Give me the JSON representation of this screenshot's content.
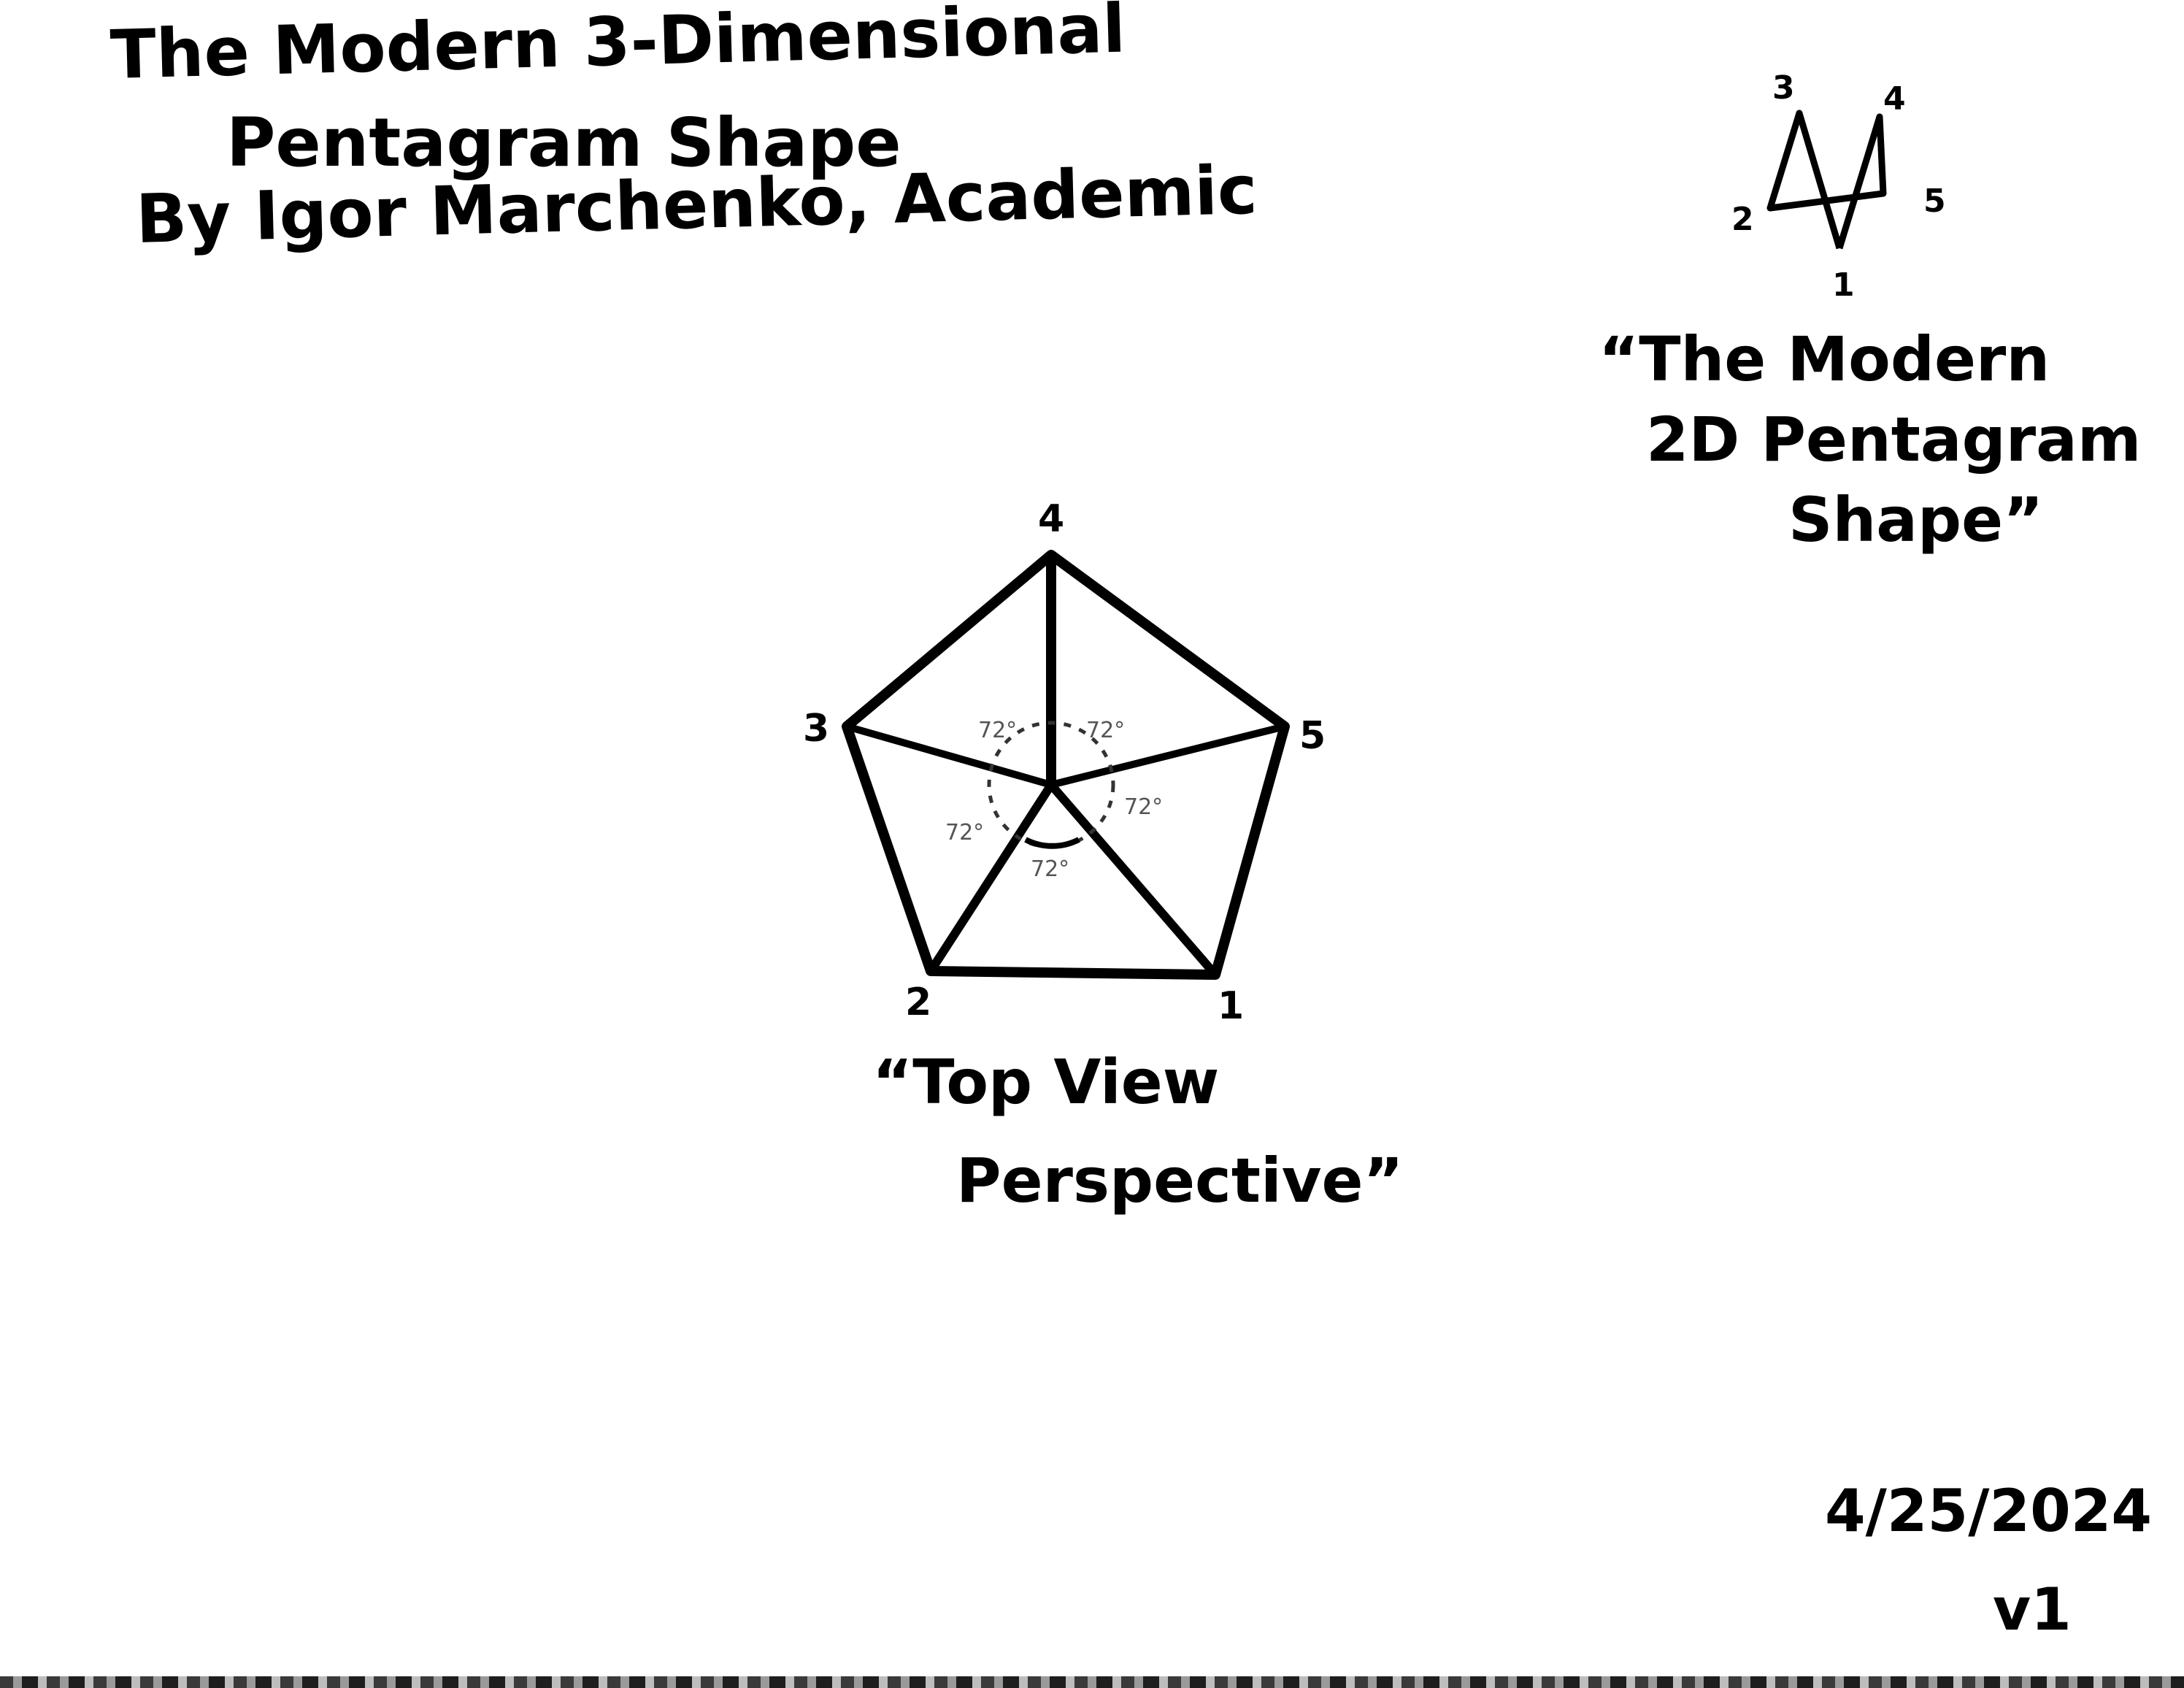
{
  "title": {
    "line1": "The Modern 3-Dimensional",
    "line2": "Pentagram Shape",
    "line3": "By Igor Marchenko, Academic"
  },
  "star_2d": {
    "vertex_labels": [
      "1",
      "2",
      "3",
      "4",
      "5"
    ],
    "caption_lines": [
      "“The Modern",
      "2D Pentagram",
      "Shape”"
    ]
  },
  "top_view": {
    "vertex_labels": [
      "1",
      "2",
      "3",
      "4",
      "5"
    ],
    "angle_labels": [
      "72°",
      "72°",
      "72°",
      "72°",
      "72°"
    ],
    "caption_lines": [
      "“Top View",
      "Perspective”"
    ]
  },
  "date": "4/25/2024",
  "version": "v1",
  "colors": {
    "ink": "#000000",
    "pencil": "#555555",
    "paper": "#ffffff"
  }
}
